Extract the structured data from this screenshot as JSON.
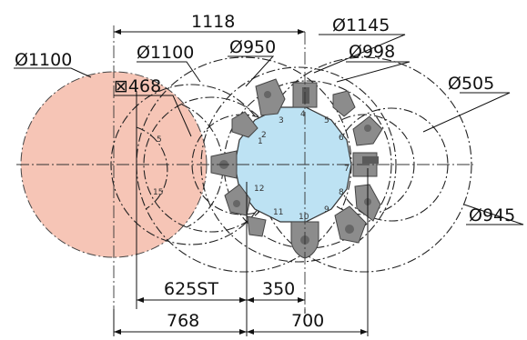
{
  "labels": {
    "d_1118": "1118",
    "d_phi1145": "Ø1145",
    "d_phi998": "Ø998",
    "d_phi1100_left": "Ø1100",
    "d_phi1100_mid": "Ø1100",
    "d_phi950": "Ø950",
    "d_phi505": "Ø505",
    "d_phi945": "Ø945",
    "d_sq468": "⊠468",
    "d_625st": "625ST",
    "d_350": "350",
    "d_768": "768",
    "d_700": "700"
  },
  "turret_numbers": [
    "1",
    "2",
    "3",
    "4",
    "5",
    "6",
    "7",
    "8",
    "9",
    "10",
    "11",
    "12"
  ],
  "chuck_numbers": [
    "5",
    "15"
  ],
  "colors": {
    "chuck_fill": "#f6c5b6",
    "turret_fill": "#bde2f3",
    "tool_fill": "#8c8c8c"
  }
}
